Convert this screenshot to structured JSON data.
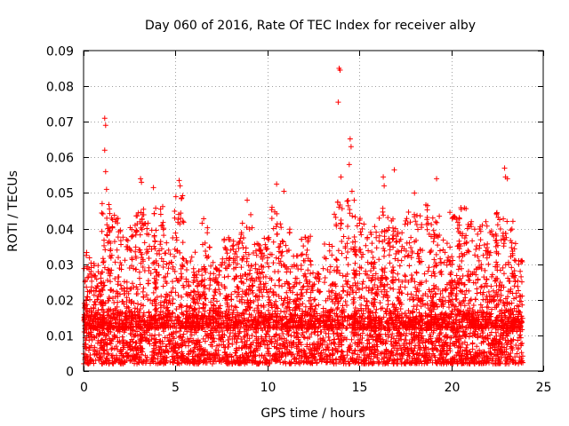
{
  "chart_data": {
    "type": "scatter",
    "title": "Day 060 of 2016, Rate Of TEC Index for receiver alby",
    "xlabel": "GPS time / hours",
    "ylabel": "ROTI / TECUs",
    "xlim": [
      0,
      25
    ],
    "ylim": [
      0,
      0.09
    ],
    "xticks": [
      0,
      5,
      10,
      15,
      20,
      25
    ],
    "yticks": [
      0,
      0.01,
      0.02,
      0.03,
      0.04,
      0.05,
      0.06,
      0.07,
      0.08,
      0.09
    ],
    "grid": true,
    "marker": "+",
    "color": "#ff0000",
    "series": [
      {
        "name": "ROTI",
        "outliers": [
          {
            "x": 1.15,
            "y": 0.071
          },
          {
            "x": 1.2,
            "y": 0.069
          },
          {
            "x": 1.15,
            "y": 0.062
          },
          {
            "x": 1.2,
            "y": 0.056
          },
          {
            "x": 1.25,
            "y": 0.051
          },
          {
            "x": 3.1,
            "y": 0.054
          },
          {
            "x": 3.15,
            "y": 0.053
          },
          {
            "x": 3.8,
            "y": 0.0515
          },
          {
            "x": 5.2,
            "y": 0.0535
          },
          {
            "x": 5.25,
            "y": 0.052
          },
          {
            "x": 8.9,
            "y": 0.048
          },
          {
            "x": 10.5,
            "y": 0.0525
          },
          {
            "x": 10.9,
            "y": 0.0505
          },
          {
            "x": 13.9,
            "y": 0.085
          },
          {
            "x": 13.95,
            "y": 0.0845
          },
          {
            "x": 13.85,
            "y": 0.0755
          },
          {
            "x": 14.0,
            "y": 0.0545
          },
          {
            "x": 14.5,
            "y": 0.0652
          },
          {
            "x": 14.55,
            "y": 0.063
          },
          {
            "x": 14.45,
            "y": 0.058
          },
          {
            "x": 14.6,
            "y": 0.0505
          },
          {
            "x": 16.3,
            "y": 0.0545
          },
          {
            "x": 16.35,
            "y": 0.052
          },
          {
            "x": 16.9,
            "y": 0.0565
          },
          {
            "x": 18.0,
            "y": 0.05
          },
          {
            "x": 19.2,
            "y": 0.054
          },
          {
            "x": 22.9,
            "y": 0.057
          },
          {
            "x": 22.95,
            "y": 0.0545
          },
          {
            "x": 23.05,
            "y": 0.054
          }
        ],
        "bursts": [
          {
            "x": 0.3,
            "peak": 0.034
          },
          {
            "x": 0.8,
            "peak": 0.03
          },
          {
            "x": 1.2,
            "peak": 0.048
          },
          {
            "x": 1.6,
            "peak": 0.044
          },
          {
            "x": 2.1,
            "peak": 0.04
          },
          {
            "x": 2.6,
            "peak": 0.044
          },
          {
            "x": 3.1,
            "peak": 0.046
          },
          {
            "x": 3.7,
            "peak": 0.042
          },
          {
            "x": 4.1,
            "peak": 0.05
          },
          {
            "x": 4.6,
            "peak": 0.038
          },
          {
            "x": 5.2,
            "peak": 0.05
          },
          {
            "x": 5.8,
            "peak": 0.034
          },
          {
            "x": 6.2,
            "peak": 0.03
          },
          {
            "x": 6.7,
            "peak": 0.043
          },
          {
            "x": 7.3,
            "peak": 0.032
          },
          {
            "x": 7.9,
            "peak": 0.038
          },
          {
            "x": 8.4,
            "peak": 0.04
          },
          {
            "x": 8.9,
            "peak": 0.044
          },
          {
            "x": 9.4,
            "peak": 0.036
          },
          {
            "x": 9.9,
            "peak": 0.038
          },
          {
            "x": 10.5,
            "peak": 0.046
          },
          {
            "x": 11.0,
            "peak": 0.04
          },
          {
            "x": 11.6,
            "peak": 0.033
          },
          {
            "x": 12.1,
            "peak": 0.038
          },
          {
            "x": 12.6,
            "peak": 0.028
          },
          {
            "x": 13.3,
            "peak": 0.036
          },
          {
            "x": 13.9,
            "peak": 0.048
          },
          {
            "x": 14.5,
            "peak": 0.05
          },
          {
            "x": 15.0,
            "peak": 0.043
          },
          {
            "x": 15.6,
            "peak": 0.04
          },
          {
            "x": 16.1,
            "peak": 0.046
          },
          {
            "x": 16.6,
            "peak": 0.044
          },
          {
            "x": 17.1,
            "peak": 0.04
          },
          {
            "x": 17.7,
            "peak": 0.046
          },
          {
            "x": 18.2,
            "peak": 0.044
          },
          {
            "x": 18.8,
            "peak": 0.048
          },
          {
            "x": 19.3,
            "peak": 0.044
          },
          {
            "x": 19.8,
            "peak": 0.038
          },
          {
            "x": 20.2,
            "peak": 0.045
          },
          {
            "x": 20.7,
            "peak": 0.046
          },
          {
            "x": 21.2,
            "peak": 0.044
          },
          {
            "x": 21.7,
            "peak": 0.042
          },
          {
            "x": 22.2,
            "peak": 0.04
          },
          {
            "x": 22.7,
            "peak": 0.046
          },
          {
            "x": 23.2,
            "peak": 0.045
          },
          {
            "x": 23.6,
            "peak": 0.036
          }
        ],
        "baseline": {
          "x_start": 0,
          "x_end": 23.9,
          "min": 0.002,
          "max": 0.016
        }
      }
    ]
  }
}
